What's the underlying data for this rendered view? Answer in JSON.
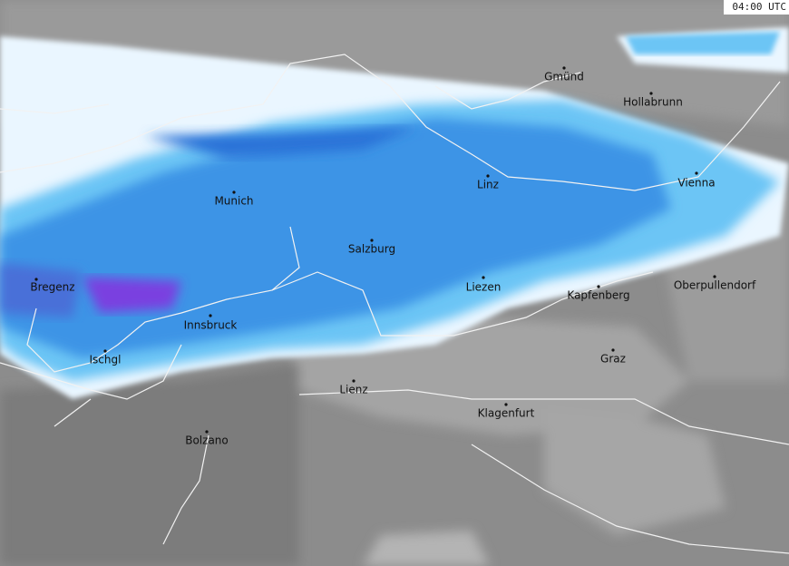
{
  "timestamp": "04:00 UTC",
  "cities": [
    "Gmünd",
    "Hollabrunn",
    "Linz",
    "Vienna",
    "Munich",
    "Salzburg",
    "Liezen",
    "Kapfenberg",
    "Oberpullendorf",
    "Bregenz",
    "Innsbruck",
    "Ischgl",
    "Graz",
    "Lienz",
    "Klagenfurt",
    "Bolzano"
  ]
}
